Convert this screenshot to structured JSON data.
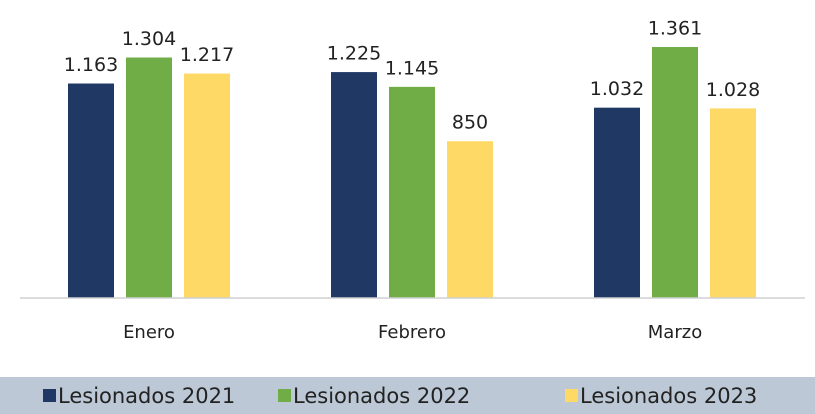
{
  "chart_data": {
    "type": "bar",
    "categories": [
      "Enero",
      "Febrero",
      "Marzo"
    ],
    "series": [
      {
        "name": "Lesionados 2021",
        "color": "#1f3864",
        "values": [
          1163,
          1225,
          1032
        ],
        "value_labels": [
          "1.163",
          "1.225",
          "1.032"
        ]
      },
      {
        "name": "Lesionados 2022",
        "color": "#70ad47",
        "values": [
          1304,
          1145,
          1361
        ],
        "value_labels": [
          "1.304",
          "1.145",
          "1.361"
        ]
      },
      {
        "name": "Lesionados 2023",
        "color": "#ffd966",
        "values": [
          1217,
          850,
          1028
        ],
        "value_labels": [
          "1.217",
          "850",
          "1.028"
        ]
      }
    ],
    "legend": "bottom"
  }
}
